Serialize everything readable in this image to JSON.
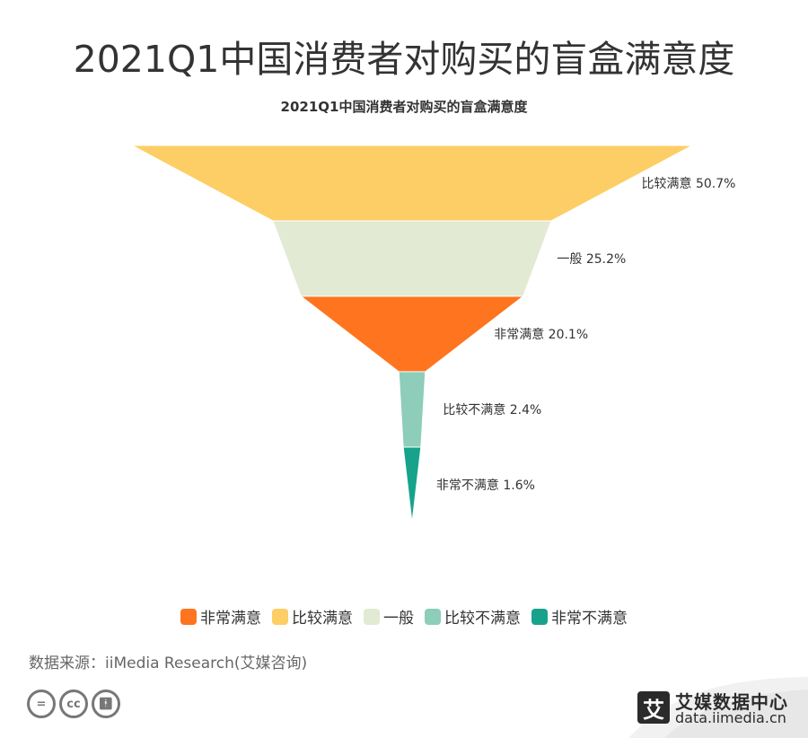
{
  "header": {
    "title": "2021Q1中国消费者对购买的盲盒满意度"
  },
  "chart_data": {
    "type": "funnel",
    "title": "2021Q1中国消费者对购买的盲盒满意度",
    "sort": "descending",
    "series": [
      {
        "name": "比较满意",
        "value": 50.7,
        "label": "比较满意 50.7%",
        "color": "#FDCE65"
      },
      {
        "name": "一般",
        "value": 25.2,
        "label": "一般 25.2%",
        "color": "#E2EAD4"
      },
      {
        "name": "非常满意",
        "value": 20.1,
        "label": "非常满意 20.1%",
        "color": "#FF741F"
      },
      {
        "name": "比较不满意",
        "value": 2.4,
        "label": "比较不满意 2.4%",
        "color": "#8DCDB9"
      },
      {
        "name": "非常不满意",
        "value": 1.6,
        "label": "非常不满意 1.6%",
        "color": "#17A38B"
      }
    ],
    "legend": {
      "placement": "bottom",
      "items": [
        {
          "name": "非常满意",
          "color": "#FF741F"
        },
        {
          "name": "比较满意",
          "color": "#FDCE65"
        },
        {
          "name": "一般",
          "color": "#E2EAD4"
        },
        {
          "name": "比较不满意",
          "color": "#8DCDB9"
        },
        {
          "name": "非常不满意",
          "color": "#17A38B"
        }
      ]
    }
  },
  "footer": {
    "source": "数据来源：iiMedia Research(艾媒咨询)",
    "cc_icons": [
      "equal-icon",
      "cc-icon",
      "person-icon"
    ],
    "brand_name": "艾媒数据中心",
    "brand_url": "data.iimedia.cn",
    "brand_logo_char": "艾"
  }
}
